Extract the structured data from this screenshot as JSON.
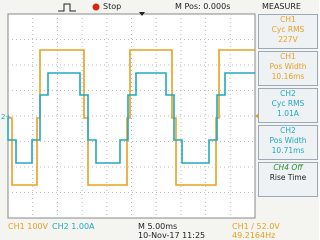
{
  "top_bar": {
    "state": "Stop",
    "position": "M Pos: 0.000s",
    "menu": "MEASURE"
  },
  "channel_marker": "2+",
  "measurements": [
    {
      "source": "CH1",
      "name": "Cyc RMS",
      "value": "227V"
    },
    {
      "source": "CH1",
      "name": "Pos Width",
      "value": "10.16ms"
    },
    {
      "source": "CH2",
      "name": "Cyc RMS",
      "value": "1.01A"
    },
    {
      "source": "CH2",
      "name": "Pos Width",
      "value": "10.71ms"
    },
    {
      "source": "CH4 Off",
      "name": "Rise Time"
    }
  ],
  "bottom_bar": {
    "ch1": "CH1 100V",
    "ch2": "CH2 1.00A",
    "timebase": "M 5.00ms",
    "datetime": "10-Nov-17 11:25",
    "trigger": "CH1 / 52.0V",
    "frequency": "49.2164Hz"
  }
}
